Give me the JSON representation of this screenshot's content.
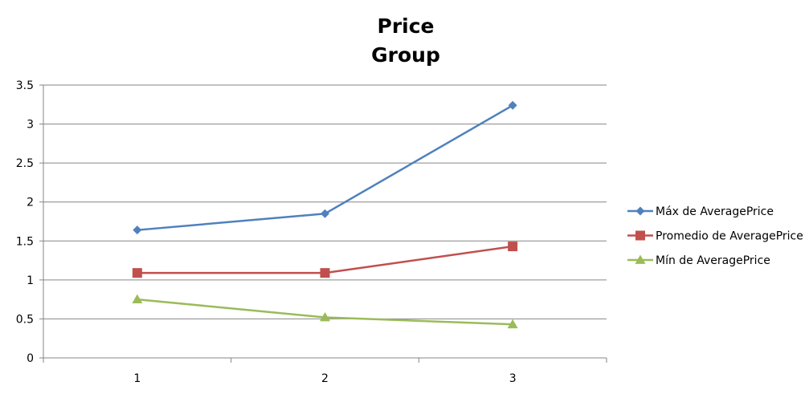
{
  "chart_data": {
    "type": "line",
    "title_lines": [
      "Price",
      "Group"
    ],
    "xlabel": "",
    "ylabel": "",
    "categories": [
      "1",
      "2",
      "3"
    ],
    "ylim": [
      0,
      3.5
    ],
    "y_ticks": [
      "0",
      "0.5",
      "1",
      "1.5",
      "2",
      "2.5",
      "3",
      "3.5"
    ],
    "grid": "horizontal",
    "legend_position": "right",
    "series": [
      {
        "name": "Máx de AveragePrice",
        "values": [
          1.64,
          1.85,
          3.24
        ],
        "color": "#4F81BD",
        "marker": "diamond"
      },
      {
        "name": "Promedio de AveragePrice",
        "values": [
          1.09,
          1.09,
          1.43
        ],
        "color": "#C0504D",
        "marker": "square"
      },
      {
        "name": "Mín de AveragePrice",
        "values": [
          0.75,
          0.52,
          0.43
        ],
        "color": "#9BBB59",
        "marker": "triangle"
      }
    ]
  }
}
